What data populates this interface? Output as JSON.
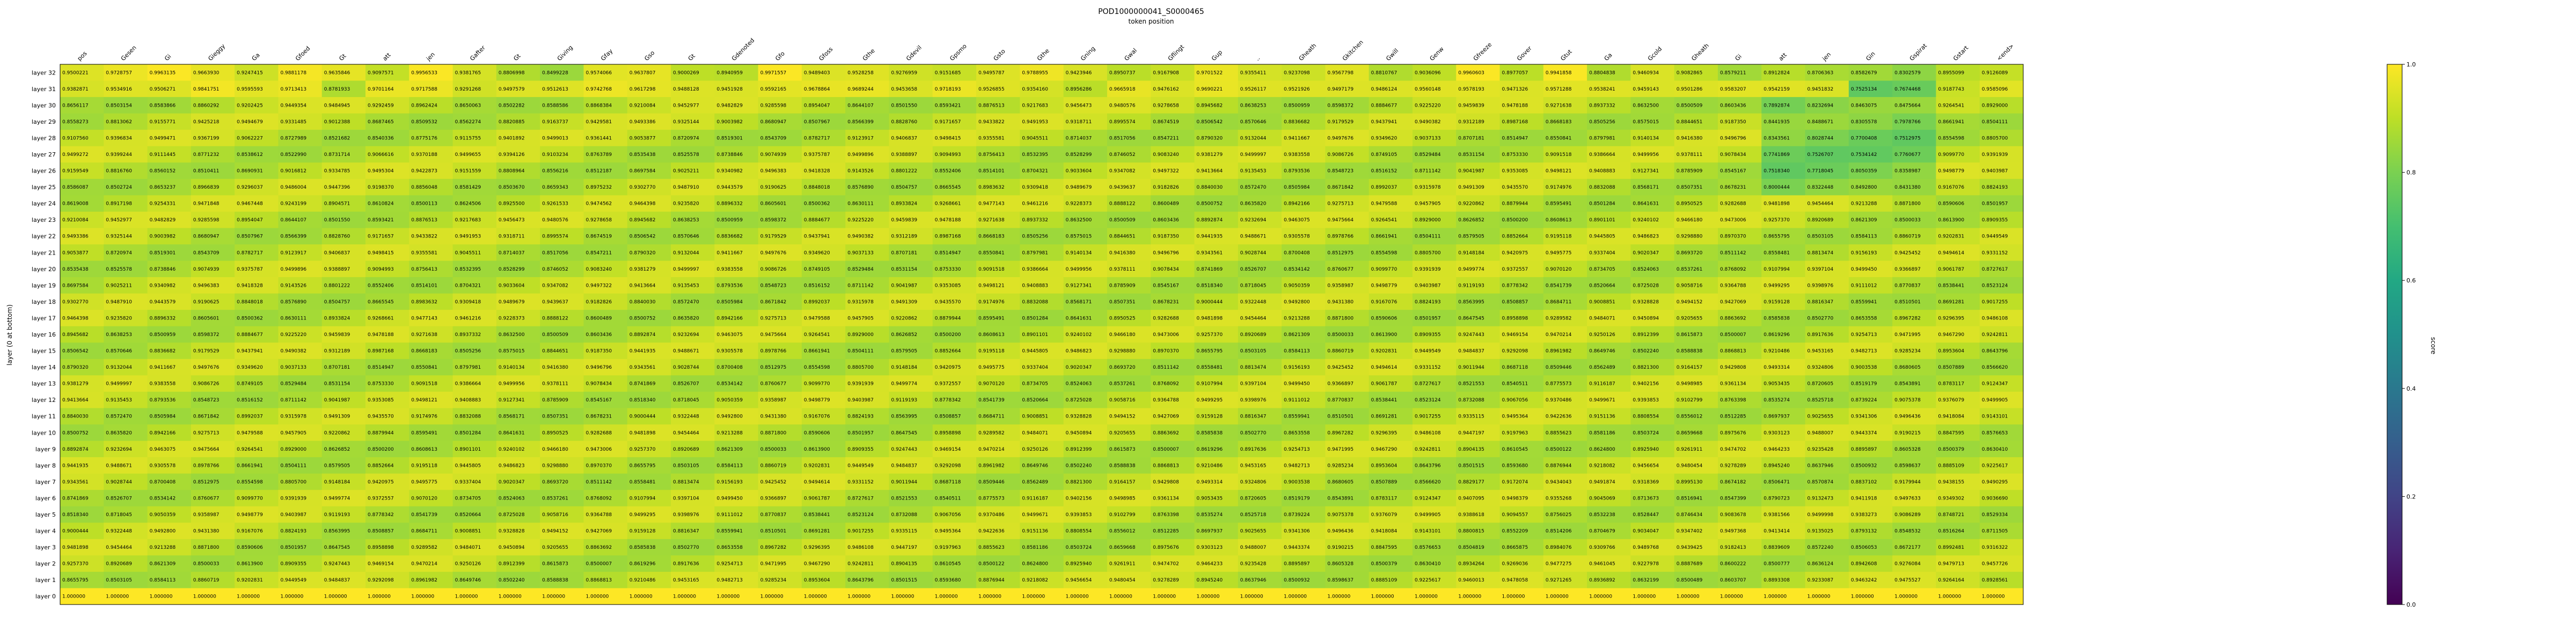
{
  "chart_data": {
    "type": "heatmap",
    "title": "POD1000000041_S0000465",
    "xlabel": "token position",
    "ylabel": "layer (0 at bottom)",
    "colorbar_label": "score",
    "colorbar_ticks": [
      "0.0",
      "0.2",
      "0.4",
      "0.6",
      "0.8",
      "1.0"
    ],
    "value_range": [
      0.0,
      1.0
    ],
    "colormap": "viridis",
    "x_tokens": [
      "pos",
      "Gesen",
      "Gi",
      "Gieggy",
      "Ga",
      "Gfoed",
      "Gt",
      "att",
      "jen",
      "Gafter",
      "Gt",
      "Giving",
      "Gfay",
      "Gso",
      "Gt",
      "Gdenoted",
      "Gfo",
      "Gfoss",
      "Gthe",
      "Gdevil",
      "Gpsmo",
      "Gsto",
      "Gthe",
      "Gning",
      "Gwal",
      "Gflingt",
      "Gup",
      "..",
      "Gheath",
      "Gkitchen",
      "Gwill",
      "Genw",
      "Gfreeze",
      "Gover",
      "Gtut",
      "Ga",
      "Gcold",
      "Gheath",
      "Gi",
      "att",
      "jen",
      "Gin",
      "Gspirat",
      "Gstart",
      "<end>"
    ],
    "y_layers": [
      "layer 32",
      "layer 31",
      "layer 30",
      "layer 29",
      "layer 28",
      "layer 27",
      "layer 26",
      "layer 25",
      "layer 24",
      "layer 23",
      "layer 22",
      "layer 21",
      "layer 20",
      "layer 19",
      "layer 18",
      "layer 17",
      "layer 16",
      "layer 15",
      "layer 14",
      "layer 13",
      "layer 12",
      "layer 11",
      "layer 10",
      "layer 9",
      "layer 8",
      "layer 7",
      "layer 6",
      "layer 5",
      "layer 4",
      "layer 3",
      "layer 2",
      "layer 1",
      "layer 0"
    ],
    "rows_first_values": [
      [
        0.9500221,
        0.9728757,
        0.9963135,
        0.966393,
        0.9247415,
        0.9881178,
        0.9635846,
        0.9097571,
        0.9956533,
        0.9381765,
        0.8806998,
        0.8499228,
        0.9574066,
        0.9637807,
        0.9000269,
        0.8940959,
        0.9971557,
        0.9489403,
        0.9528258,
        0.9276959,
        0.9151685,
        0.9495787,
        0.9788955,
        0.9423946,
        0.8950737,
        0.9167908,
        0.9701522,
        0.9355411,
        0.9237098,
        0.9567798,
        0.8810767,
        0.9036096,
        0.9960603,
        0.8977057,
        0.9941858,
        0.8804838,
        0.9460934,
        0.9082865,
        0.8579211,
        0.8912824,
        0.8706363,
        0.8582679,
        0.8302579,
        0.8955099,
        0.9126089
      ],
      [
        0.9382871,
        0.9534916,
        0.9506271,
        0.9841751,
        0.9595593,
        0.9713413,
        0.8781933,
        0.9701164,
        0.9717588,
        0.9291268,
        0.9497579,
        0.9512613,
        0.9742768,
        0.9617298,
        0.9488128,
        0.9451928,
        0.9592165,
        0.9678864,
        0.9689244,
        0.9453658,
        0.9718193,
        0.9526855,
        0.935416,
        0.8956286,
        0.9665918,
        0.9476162,
        0.9690221,
        0.9526117,
        0.9521926,
        0.9497179,
        0.9486124,
        0.9560148,
        0.9578193,
        0.9471326,
        0.9571288,
        0.9538241,
        0.9459143,
        0.9501286,
        0.9583207,
        0.9542159,
        0.9451832,
        0.7525134,
        0.7674468,
        0.9187743,
        0.9585096
      ]
    ]
  }
}
